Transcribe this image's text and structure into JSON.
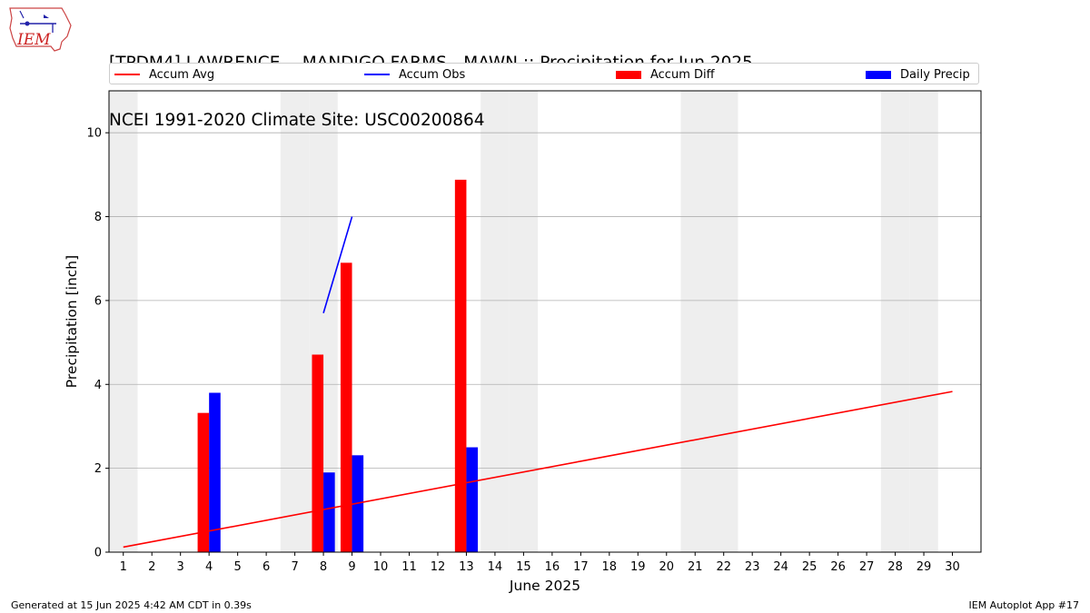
{
  "header": {
    "title_line1": "[TPDM4] LAWRENCE  - MANDIGO FARMS - MAWN :: Precipitation for Jun 2025",
    "title_line2": "NCEI 1991-2020 Climate Site: USC00200864",
    "logo_text": "IEM"
  },
  "footer": {
    "generated": "Generated at 15 Jun 2025 4:42 AM CDT in 0.39s",
    "app": "IEM Autoplot App #17"
  },
  "colors": {
    "accum_avg": "#ff0000",
    "accum_obs": "#0000ff",
    "accum_diff": "#ff0000",
    "daily_precip": "#0000ff",
    "weekend_band": "#eeeeee",
    "grid": "#b0b0b0"
  },
  "chart_data": {
    "type": "bar",
    "title": "[TPDM4] LAWRENCE  - MANDIGO FARMS - MAWN :: Precipitation for Jun 2025",
    "subtitle": "NCEI 1991-2020 Climate Site: USC00200864",
    "xlabel": "June 2025",
    "ylabel": "Precipitation [inch]",
    "xlim": [
      0.5,
      31.0
    ],
    "ylim": [
      0,
      11
    ],
    "yticks": [
      0,
      2,
      4,
      6,
      8,
      10
    ],
    "xticks": [
      1,
      2,
      3,
      4,
      5,
      6,
      7,
      8,
      9,
      10,
      11,
      12,
      13,
      14,
      15,
      16,
      17,
      18,
      19,
      20,
      21,
      22,
      23,
      24,
      25,
      26,
      27,
      28,
      29,
      30
    ],
    "grid": "y",
    "legend_position": "top",
    "weekend_days": [
      1,
      7,
      8,
      14,
      15,
      21,
      22,
      28,
      29
    ],
    "legend": [
      "Accum Avg",
      "Accum Obs",
      "Accum Diff",
      "Daily Precip"
    ],
    "series": [
      {
        "name": "Accum Avg",
        "kind": "line",
        "x": [
          1,
          30
        ],
        "values": [
          0.12,
          3.83
        ]
      },
      {
        "name": "Accum Obs",
        "kind": "line",
        "x": [
          8,
          9
        ],
        "values": [
          5.7,
          8.0
        ]
      },
      {
        "name": "Accum Diff",
        "kind": "bar",
        "x": [
          4,
          8,
          9,
          13
        ],
        "values": [
          3.32,
          4.71,
          6.9,
          8.88
        ]
      },
      {
        "name": "Daily Precip",
        "kind": "bar",
        "x": [
          4,
          8,
          9,
          13
        ],
        "values": [
          3.8,
          1.9,
          2.31,
          2.5
        ]
      }
    ]
  }
}
